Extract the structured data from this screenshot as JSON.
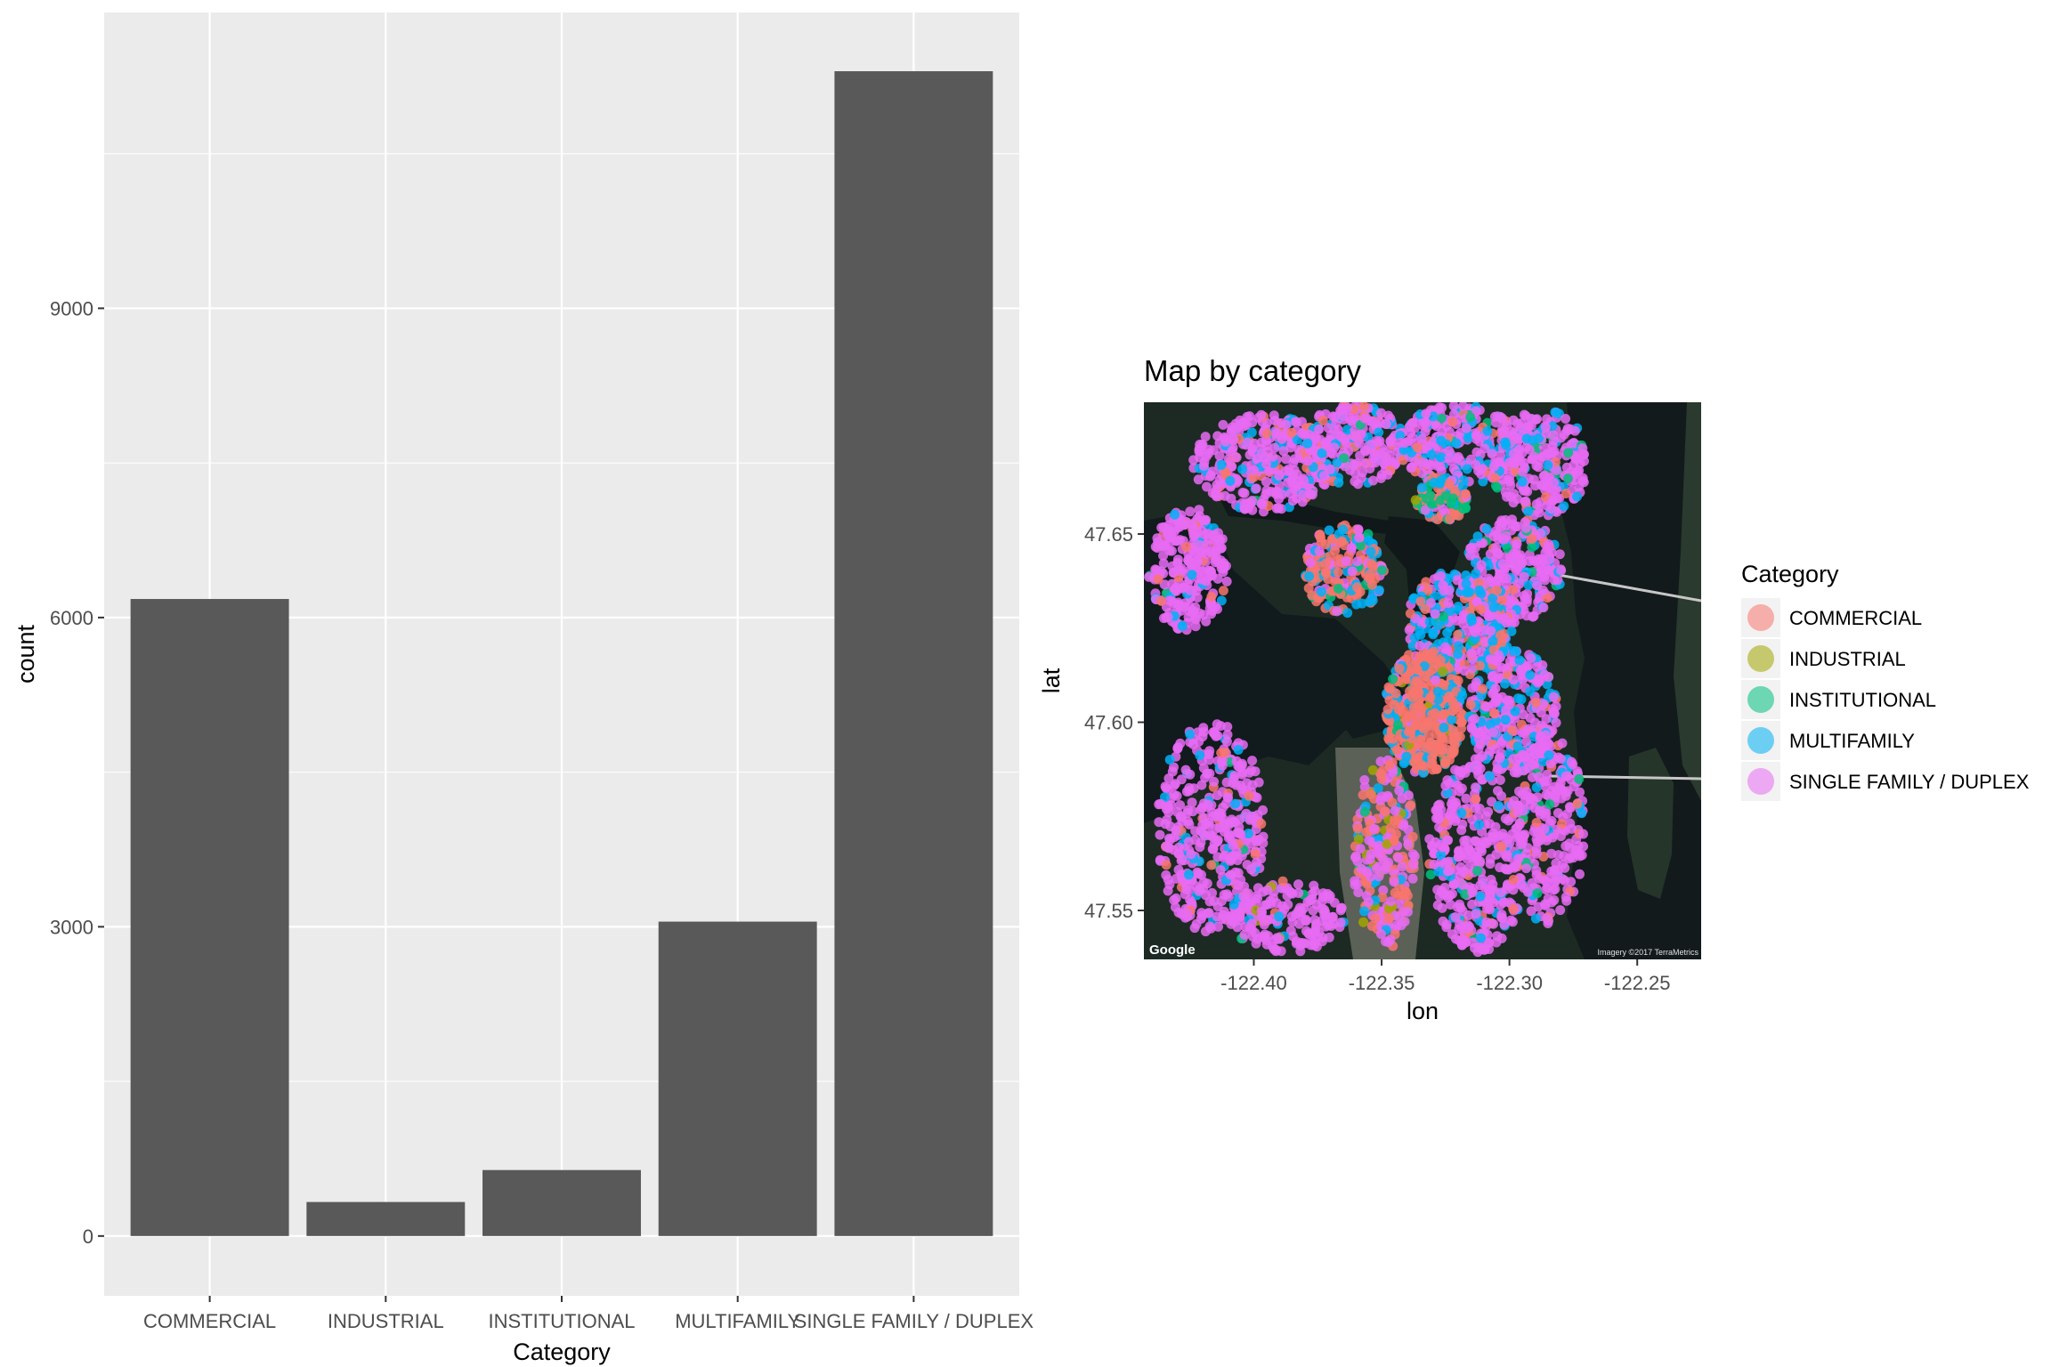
{
  "bar_chart": {
    "xlabel": "Category",
    "ylabel": "count"
  },
  "map_chart": {
    "title": "Map by category",
    "xlabel": "lon",
    "ylabel": "lat",
    "google_logo": "Google",
    "imagery_credit": "Imagery ©2017 TerraMetrics",
    "legend_title": "Category"
  },
  "chart_data": [
    {
      "type": "bar",
      "categories": [
        "COMMERCIAL",
        "INDUSTRIAL",
        "INSTITUTIONAL",
        "MULTIFAMILY",
        "SINGLE FAMILY / DUPLEX"
      ],
      "values": [
        6180,
        330,
        640,
        3050,
        11300
      ],
      "xlabel": "Category",
      "ylabel": "count",
      "ylim": [
        -580,
        11870
      ],
      "yticks": [
        0,
        3000,
        6000,
        9000
      ],
      "grid": true,
      "bar_color": "#595959",
      "panel_color": "#ebebeb"
    },
    {
      "type": "scatter",
      "title": "Map by category",
      "xlabel": "lon",
      "ylabel": "lat",
      "xlim": [
        -122.443,
        -122.225
      ],
      "ylim": [
        47.537,
        47.685
      ],
      "xticks": [
        -122.4,
        -122.35,
        -122.3,
        -122.25
      ],
      "yticks": [
        47.55,
        47.6,
        47.65
      ],
      "background": "satellite map tiles",
      "legend_position": "right",
      "legend_title": "Category",
      "series": [
        {
          "name": "COMMERCIAL",
          "color": "#f8766d"
        },
        {
          "name": "INDUSTRIAL",
          "color": "#a3a500"
        },
        {
          "name": "INSTITUTIONAL",
          "color": "#00bf7d"
        },
        {
          "name": "MULTIFAMILY",
          "color": "#00b0f6"
        },
        {
          "name": "SINGLE FAMILY / DUPLEX",
          "color": "#e76bf3"
        }
      ]
    }
  ]
}
